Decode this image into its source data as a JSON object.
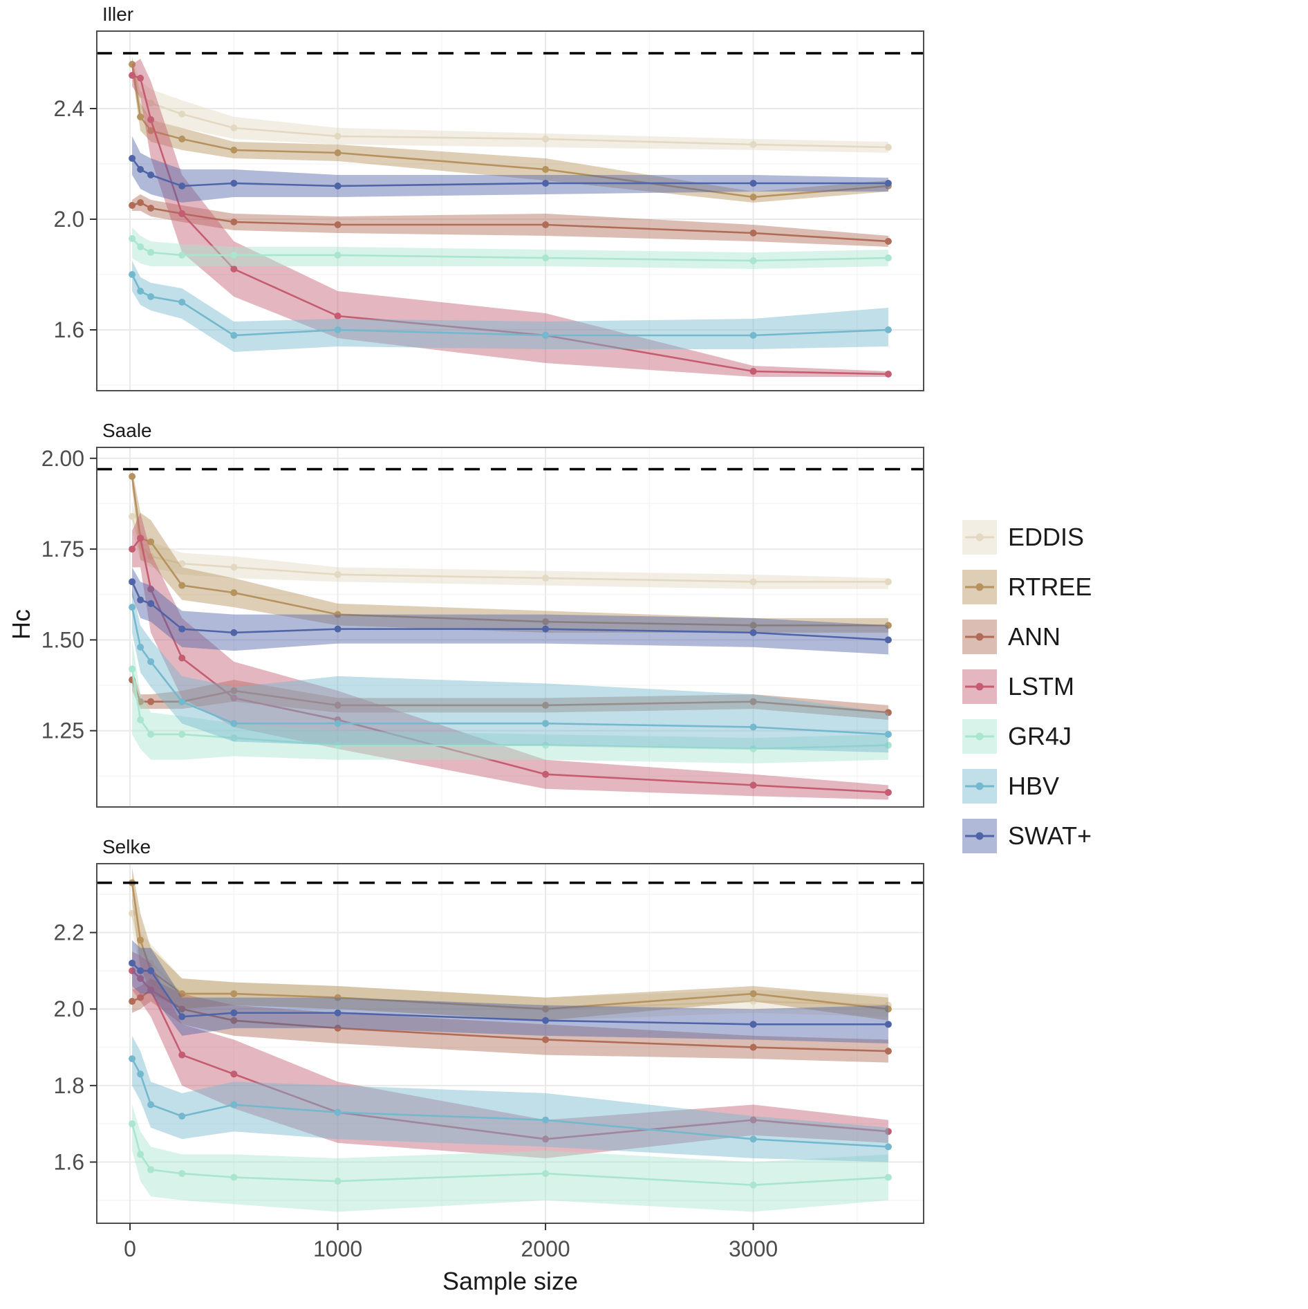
{
  "chart_data": {
    "type": "line",
    "x_label": "Sample size",
    "y_label": "Hc",
    "x_domain": [
      -160,
      3820
    ],
    "x_ticks": [
      0,
      1000,
      2000,
      3000
    ],
    "x_minor": [
      500,
      1500,
      2500,
      3500
    ],
    "sample_sizes": [
      10,
      50,
      100,
      250,
      500,
      1000,
      2000,
      3000,
      3650
    ],
    "legend_position": "right",
    "series": [
      {
        "name": "EDDIS",
        "color": "#e3d9c2"
      },
      {
        "name": "RTREE",
        "color": "#b5925e"
      },
      {
        "name": "ANN",
        "color": "#b06c57"
      },
      {
        "name": "LSTM",
        "color": "#c45d72"
      },
      {
        "name": "GR4J",
        "color": "#a9e5cf"
      },
      {
        "name": "HBV",
        "color": "#74b8ce"
      },
      {
        "name": "SWAT+",
        "color": "#4f64a6"
      }
    ],
    "panels": [
      {
        "title": "Iller",
        "y_domain": [
          1.38,
          2.68
        ],
        "y_major": [
          1.6,
          2.0,
          2.4
        ],
        "y_tick_labels": [
          "1.6",
          "2.0",
          "2.4"
        ],
        "y_minor": [
          1.4,
          1.8,
          2.2,
          2.6
        ],
        "dashed": 2.6,
        "series": {
          "EDDIS": {
            "mean": [
              2.56,
              2.45,
              2.42,
              2.38,
              2.33,
              2.3,
              2.29,
              2.27,
              2.26
            ],
            "lo": [
              2.52,
              2.4,
              2.36,
              2.33,
              2.29,
              2.27,
              2.26,
              2.25,
              2.24
            ],
            "hi": [
              2.58,
              2.5,
              2.47,
              2.43,
              2.37,
              2.33,
              2.31,
              2.29,
              2.28
            ]
          },
          "RTREE": {
            "mean": [
              2.56,
              2.37,
              2.32,
              2.29,
              2.25,
              2.24,
              2.18,
              2.08,
              2.12
            ],
            "lo": [
              2.53,
              2.32,
              2.28,
              2.25,
              2.22,
              2.21,
              2.14,
              2.06,
              2.1
            ],
            "hi": [
              2.59,
              2.42,
              2.36,
              2.33,
              2.28,
              2.27,
              2.22,
              2.1,
              2.14
            ]
          },
          "ANN": {
            "mean": [
              2.05,
              2.06,
              2.04,
              2.02,
              1.99,
              1.98,
              1.98,
              1.95,
              1.92
            ],
            "lo": [
              2.03,
              2.03,
              2.01,
              1.99,
              1.96,
              1.95,
              1.94,
              1.92,
              1.9
            ],
            "hi": [
              2.07,
              2.09,
              2.07,
              2.05,
              2.02,
              2.01,
              2.02,
              1.98,
              1.94
            ]
          },
          "LSTM": {
            "mean": [
              2.52,
              2.51,
              2.36,
              2.02,
              1.82,
              1.65,
              1.58,
              1.45,
              1.44
            ],
            "lo": [
              2.48,
              2.44,
              2.22,
              1.88,
              1.72,
              1.57,
              1.48,
              1.43,
              1.43
            ],
            "hi": [
              2.56,
              2.58,
              2.5,
              2.16,
              1.92,
              1.74,
              1.66,
              1.47,
              1.45
            ]
          },
          "GR4J": {
            "mean": [
              1.93,
              1.9,
              1.88,
              1.87,
              1.87,
              1.87,
              1.86,
              1.85,
              1.86
            ],
            "lo": [
              1.86,
              1.84,
              1.83,
              1.83,
              1.83,
              1.83,
              1.83,
              1.82,
              1.83
            ],
            "hi": [
              1.97,
              1.94,
              1.92,
              1.91,
              1.9,
              1.9,
              1.89,
              1.88,
              1.89
            ]
          },
          "HBV": {
            "mean": [
              1.8,
              1.74,
              1.72,
              1.7,
              1.58,
              1.6,
              1.58,
              1.58,
              1.6
            ],
            "lo": [
              1.74,
              1.69,
              1.67,
              1.64,
              1.52,
              1.54,
              1.53,
              1.53,
              1.54
            ],
            "hi": [
              1.85,
              1.79,
              1.77,
              1.75,
              1.63,
              1.64,
              1.63,
              1.64,
              1.68
            ]
          },
          "SWAT+": {
            "mean": [
              2.22,
              2.18,
              2.16,
              2.12,
              2.13,
              2.12,
              2.13,
              2.13,
              2.13
            ],
            "lo": [
              2.16,
              2.11,
              2.09,
              2.06,
              2.08,
              2.08,
              2.09,
              2.1,
              2.1
            ],
            "hi": [
              2.3,
              2.24,
              2.22,
              2.18,
              2.18,
              2.16,
              2.16,
              2.16,
              2.15
            ]
          }
        }
      },
      {
        "title": "Saale",
        "y_domain": [
          1.04,
          2.03
        ],
        "y_major": [
          1.25,
          1.5,
          1.75,
          2.0
        ],
        "y_tick_labels": [
          "1.25",
          "1.50",
          "1.75",
          "2.00"
        ],
        "y_minor": [
          1.125,
          1.375,
          1.625,
          1.875
        ],
        "dashed": 1.97,
        "series": {
          "EDDIS": {
            "mean": [
              1.84,
              1.76,
              1.73,
              1.71,
              1.7,
              1.68,
              1.67,
              1.66,
              1.66
            ],
            "lo": [
              1.8,
              1.72,
              1.7,
              1.68,
              1.67,
              1.66,
              1.65,
              1.64,
              1.64
            ],
            "hi": [
              1.88,
              1.8,
              1.77,
              1.74,
              1.73,
              1.7,
              1.69,
              1.68,
              1.67
            ]
          },
          "RTREE": {
            "mean": [
              1.95,
              1.78,
              1.77,
              1.65,
              1.63,
              1.57,
              1.55,
              1.54,
              1.54
            ],
            "lo": [
              1.92,
              1.72,
              1.71,
              1.61,
              1.59,
              1.54,
              1.52,
              1.52,
              1.52
            ],
            "hi": [
              1.97,
              1.85,
              1.83,
              1.7,
              1.67,
              1.6,
              1.58,
              1.56,
              1.56
            ]
          },
          "ANN": {
            "mean": [
              1.39,
              1.33,
              1.33,
              1.33,
              1.36,
              1.32,
              1.32,
              1.33,
              1.3
            ],
            "lo": [
              1.36,
              1.31,
              1.31,
              1.31,
              1.33,
              1.3,
              1.3,
              1.31,
              1.28
            ],
            "hi": [
              1.42,
              1.35,
              1.35,
              1.36,
              1.39,
              1.34,
              1.34,
              1.35,
              1.32
            ]
          },
          "LSTM": {
            "mean": [
              1.75,
              1.78,
              1.64,
              1.45,
              1.34,
              1.28,
              1.13,
              1.1,
              1.08
            ],
            "lo": [
              1.7,
              1.7,
              1.52,
              1.34,
              1.26,
              1.2,
              1.09,
              1.07,
              1.06
            ],
            "hi": [
              1.8,
              1.85,
              1.74,
              1.56,
              1.44,
              1.36,
              1.17,
              1.13,
              1.1
            ]
          },
          "GR4J": {
            "mean": [
              1.42,
              1.28,
              1.24,
              1.24,
              1.23,
              1.21,
              1.21,
              1.2,
              1.21
            ],
            "lo": [
              1.24,
              1.2,
              1.17,
              1.17,
              1.18,
              1.17,
              1.17,
              1.16,
              1.17
            ],
            "hi": [
              1.5,
              1.35,
              1.3,
              1.29,
              1.27,
              1.25,
              1.24,
              1.23,
              1.24
            ]
          },
          "HBV": {
            "mean": [
              1.59,
              1.48,
              1.44,
              1.33,
              1.27,
              1.27,
              1.27,
              1.26,
              1.24
            ],
            "lo": [
              1.52,
              1.41,
              1.37,
              1.27,
              1.22,
              1.21,
              1.21,
              1.2,
              1.19
            ],
            "hi": [
              1.64,
              1.54,
              1.5,
              1.4,
              1.37,
              1.4,
              1.38,
              1.35,
              1.3
            ]
          },
          "SWAT+": {
            "mean": [
              1.66,
              1.61,
              1.6,
              1.53,
              1.52,
              1.53,
              1.53,
              1.52,
              1.5
            ],
            "lo": [
              1.62,
              1.56,
              1.55,
              1.48,
              1.47,
              1.49,
              1.49,
              1.48,
              1.46
            ],
            "hi": [
              1.7,
              1.66,
              1.65,
              1.58,
              1.57,
              1.57,
              1.57,
              1.56,
              1.54
            ]
          }
        }
      },
      {
        "title": "Selke",
        "y_domain": [
          1.44,
          2.38
        ],
        "y_major": [
          1.6,
          1.8,
          2.0,
          2.2
        ],
        "y_tick_labels": [
          "1.6",
          "1.8",
          "2.0",
          "2.2"
        ],
        "y_minor": [
          1.5,
          1.7,
          1.9,
          2.1,
          2.3
        ],
        "dashed": 2.33,
        "series": {
          "EDDIS": {
            "mean": [
              2.25,
              2.15,
              2.12,
              2.04,
              2.04,
              2.03,
              2.0,
              2.02,
              2.01
            ],
            "lo": [
              2.21,
              2.1,
              2.07,
              2.0,
              2.01,
              2.0,
              1.97,
              1.99,
              1.98
            ],
            "hi": [
              2.29,
              2.2,
              2.17,
              2.08,
              2.07,
              2.06,
              2.03,
              2.05,
              2.04
            ]
          },
          "RTREE": {
            "mean": [
              2.33,
              2.18,
              2.1,
              2.04,
              2.04,
              2.03,
              2.0,
              2.04,
              2.0
            ],
            "lo": [
              2.28,
              2.11,
              2.04,
              2.0,
              2.01,
              2.0,
              1.97,
              2.02,
              1.97
            ],
            "hi": [
              2.37,
              2.25,
              2.16,
              2.08,
              2.07,
              2.06,
              2.03,
              2.06,
              2.03
            ]
          },
          "ANN": {
            "mean": [
              2.02,
              2.03,
              2.05,
              2.0,
              1.97,
              1.95,
              1.92,
              1.9,
              1.89
            ],
            "lo": [
              1.99,
              2.0,
              2.02,
              1.96,
              1.93,
              1.91,
              1.88,
              1.87,
              1.86
            ],
            "hi": [
              2.05,
              2.06,
              2.08,
              2.04,
              2.01,
              1.99,
              1.96,
              1.93,
              1.92
            ]
          },
          "LSTM": {
            "mean": [
              2.1,
              2.08,
              2.05,
              1.88,
              1.83,
              1.73,
              1.66,
              1.71,
              1.68
            ],
            "lo": [
              2.05,
              2.02,
              1.98,
              1.8,
              1.74,
              1.65,
              1.61,
              1.67,
              1.65
            ],
            "hi": [
              2.15,
              2.14,
              2.12,
              1.96,
              1.92,
              1.81,
              1.71,
              1.75,
              1.71
            ]
          },
          "GR4J": {
            "mean": [
              1.7,
              1.62,
              1.58,
              1.57,
              1.56,
              1.55,
              1.57,
              1.54,
              1.56
            ],
            "lo": [
              1.63,
              1.55,
              1.51,
              1.5,
              1.49,
              1.47,
              1.5,
              1.47,
              1.5
            ],
            "hi": [
              1.75,
              1.68,
              1.64,
              1.62,
              1.62,
              1.61,
              1.63,
              1.6,
              1.62
            ]
          },
          "HBV": {
            "mean": [
              1.87,
              1.83,
              1.75,
              1.72,
              1.75,
              1.73,
              1.71,
              1.66,
              1.64
            ],
            "lo": [
              1.8,
              1.76,
              1.69,
              1.66,
              1.68,
              1.66,
              1.64,
              1.61,
              1.6
            ],
            "hi": [
              1.93,
              1.89,
              1.81,
              1.78,
              1.81,
              1.8,
              1.78,
              1.72,
              1.69
            ]
          },
          "SWAT+": {
            "mean": [
              2.12,
              2.1,
              2.1,
              1.98,
              1.99,
              1.99,
              1.97,
              1.96,
              1.96
            ],
            "lo": [
              2.06,
              2.04,
              2.04,
              1.93,
              1.95,
              1.95,
              1.93,
              1.92,
              1.91
            ],
            "hi": [
              2.18,
              2.16,
              2.16,
              2.03,
              2.03,
              2.03,
              2.01,
              2.0,
              2.01
            ]
          }
        }
      }
    ],
    "legend_items": [
      "EDDIS",
      "RTREE",
      "ANN",
      "LSTM",
      "GR4J",
      "HBV",
      "SWAT+"
    ]
  },
  "style": {
    "grid_major": "#e9e9e9",
    "grid_minor": "#f5f5f5",
    "panel_border": "#4d4d4d",
    "tick_text": "#4d4d4d",
    "reference_line": "#000000"
  }
}
